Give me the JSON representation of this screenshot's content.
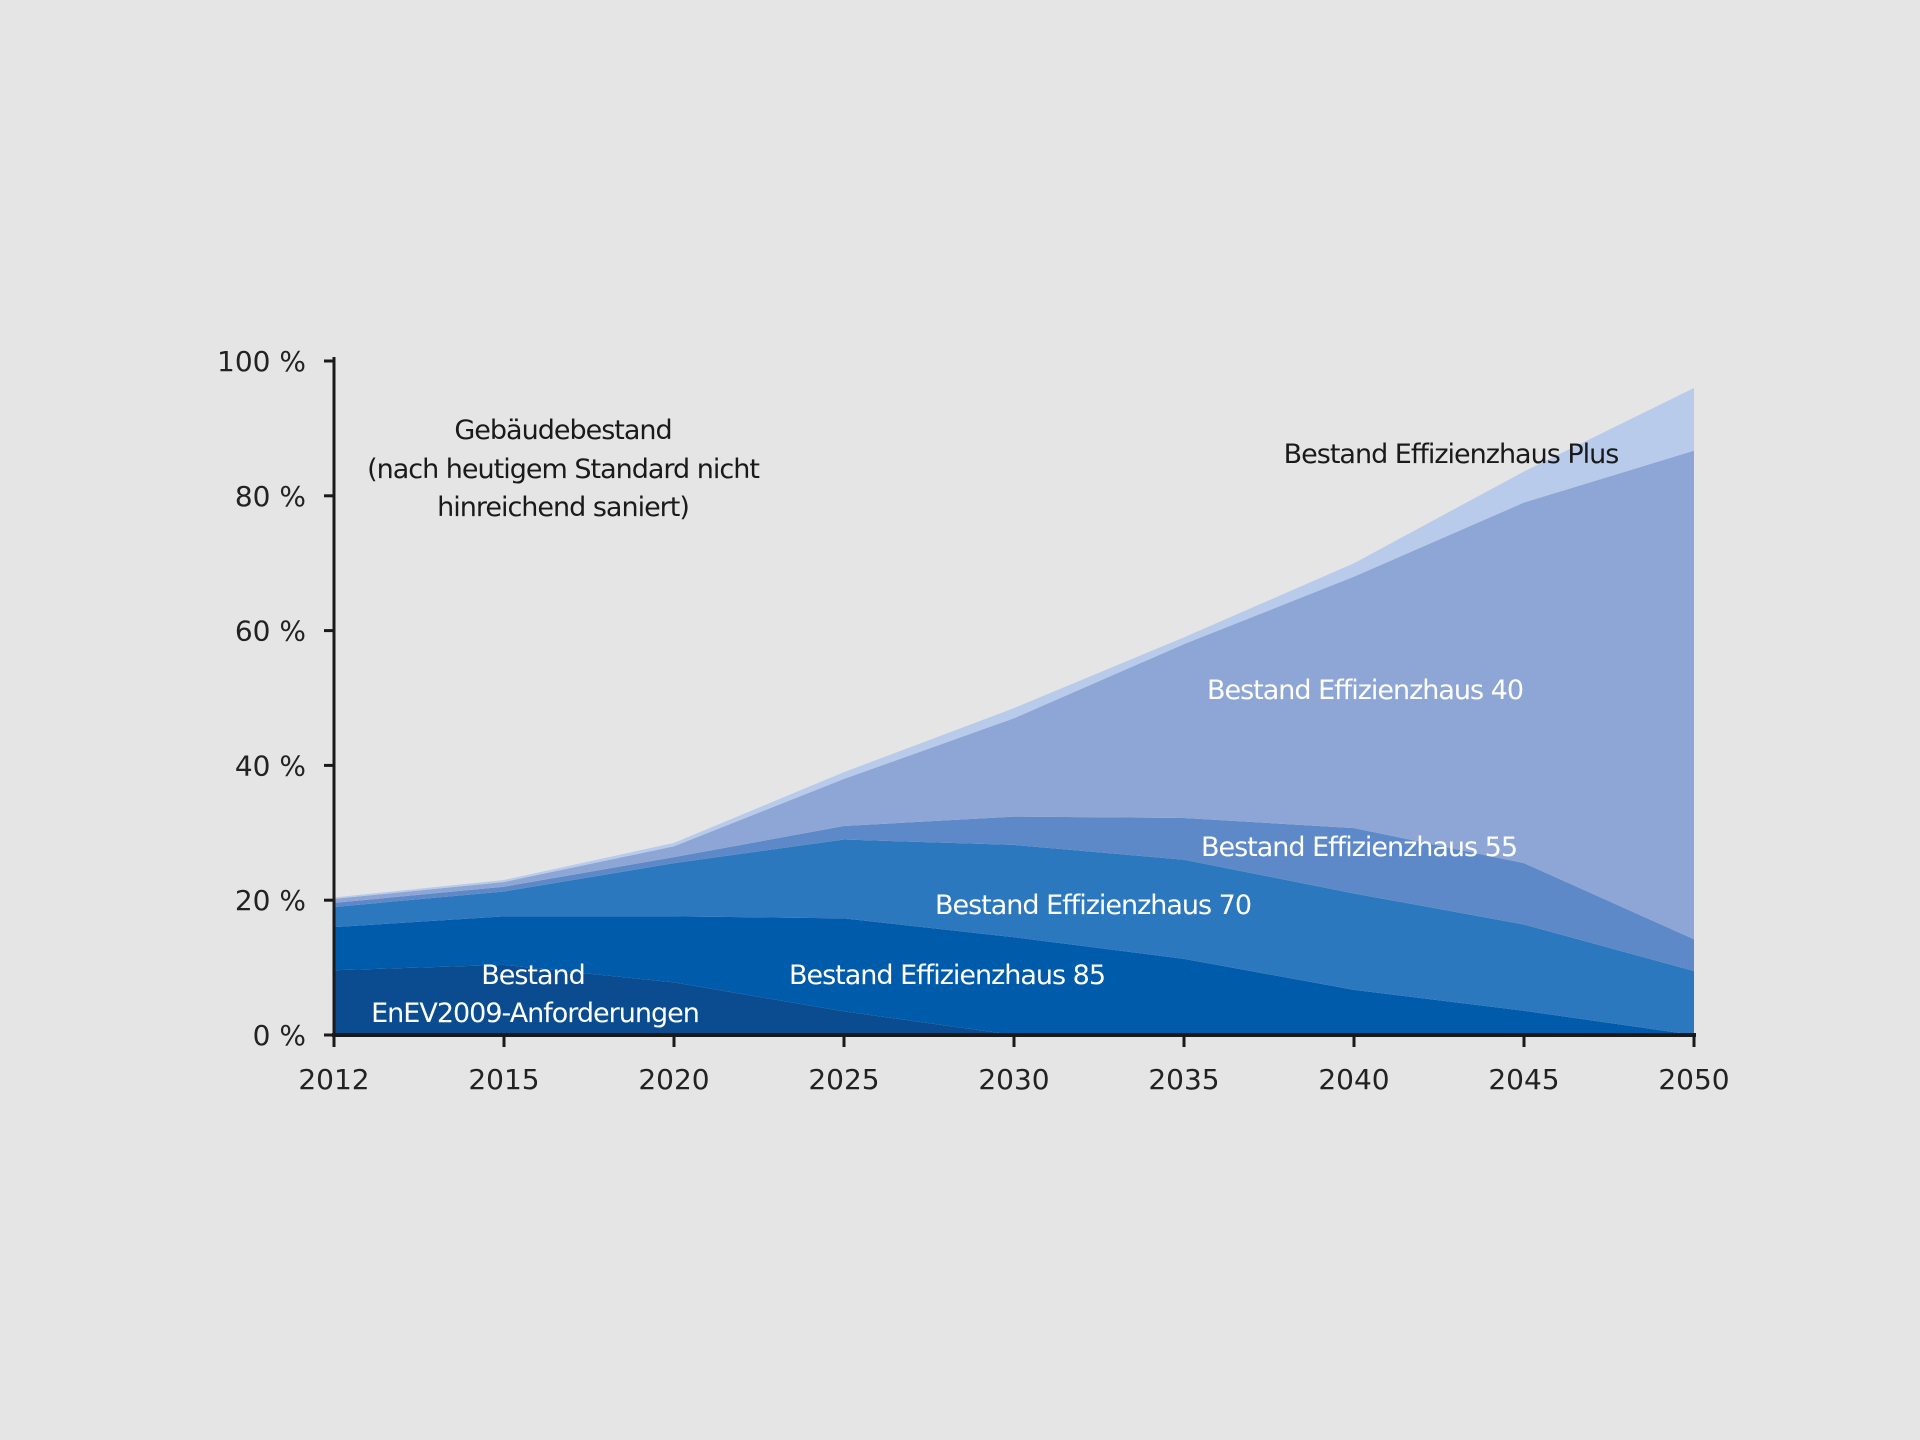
{
  "chart_data": {
    "type": "area",
    "stacked": true,
    "categories": [
      "2012",
      "2015",
      "2020",
      "2025",
      "2030",
      "2035",
      "2040",
      "2045",
      "2050"
    ],
    "yticks": [
      "0 %",
      "20 %",
      "40 %",
      "60 %",
      "80 %",
      "100 %"
    ],
    "ylim": [
      0,
      100
    ],
    "grid": false,
    "series": [
      {
        "name": "Bestand EnEV2009-Anforderungen",
        "label_lines": [
          "Bestand",
          "EnEV2009-Anforderungen"
        ],
        "color": "#0a4c8f",
        "values": [
          9.6,
          10.4,
          7.8,
          3.5,
          0,
          0,
          0,
          0,
          0
        ]
      },
      {
        "name": "Bestand Effizienzhaus 85",
        "color": "#005bab",
        "values": [
          6.4,
          7.2,
          9.8,
          13.8,
          14.5,
          11.3,
          6.7,
          3.6,
          0
        ]
      },
      {
        "name": "Bestand Effizienzhaus 70",
        "color": "#2b78bf",
        "values": [
          3.0,
          3.7,
          7.9,
          11.7,
          13.7,
          14.7,
          14.3,
          12.8,
          9.5
        ]
      },
      {
        "name": "Bestand Effizienzhaus 55",
        "color": "#5d89c8",
        "values": [
          0.6,
          0.7,
          0.9,
          2.0,
          4.2,
          6.2,
          9.7,
          9.1,
          4.7
        ]
      },
      {
        "name": "Bestand Effizienzhaus 40",
        "color": "#8ea6d6",
        "values": [
          0.6,
          0.7,
          1.6,
          7.0,
          14.6,
          25.8,
          37.3,
          53.5,
          72.5
        ]
      },
      {
        "name": "Bestand Effizienzhaus Plus",
        "color": "#b8cbea",
        "values": [
          0.2,
          0.3,
          0.5,
          1.0,
          1.5,
          1.0,
          2.0,
          4.6,
          9.3
        ]
      }
    ],
    "annotation": [
      "Gebäudebestand",
      "(nach heutigem Standard nicht",
      "hinreichend saniert)"
    ]
  }
}
